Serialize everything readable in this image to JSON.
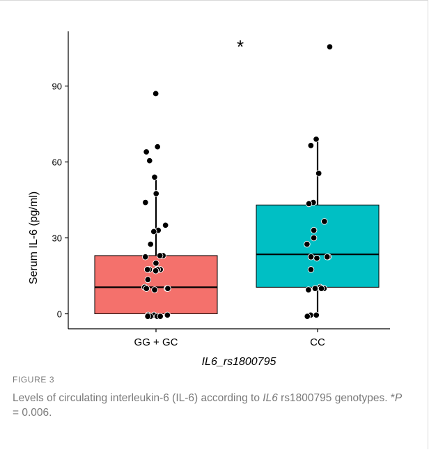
{
  "chart_data": {
    "type": "boxplot",
    "categories": [
      "GG + GC",
      "CC"
    ],
    "ylabel": "Serum IL-6 (pg/ml)",
    "xlabel": "IL6_rs1800795",
    "xlabel_italic_part": "IL6",
    "xlabel_rest": "_rs1800795",
    "yticks": [
      0,
      30,
      60,
      90
    ],
    "ylim": [
      -6,
      112
    ],
    "significance_marker": "*",
    "colors": {
      "GG + GC": "#f4716c",
      "CC": "#00bfc4"
    },
    "boxes": [
      {
        "name": "GG + GC",
        "q1": 0,
        "median": 10.5,
        "q3": 23,
        "whisker_low": -0.5,
        "whisker_high": 54
      },
      {
        "name": "CC",
        "q1": 10.5,
        "median": 23.5,
        "q3": 43,
        "whisker_low": -0.5,
        "whisker_high": 69
      }
    ],
    "points": [
      {
        "group": "GG + GC",
        "values": [
          87,
          66,
          64,
          60.5,
          54,
          47.5,
          44,
          35,
          33,
          32.5,
          27.5,
          23,
          23,
          22.5,
          20,
          17.5,
          17.5,
          17.5,
          17.5,
          17,
          13.5,
          10.5,
          10,
          10,
          10,
          9.5,
          -0.5,
          -0.5,
          -0.5,
          -1,
          -1,
          -1,
          -1
        ]
      },
      {
        "group": "CC",
        "values": [
          105.5,
          69,
          66.5,
          55.5,
          44,
          43.5,
          36.5,
          33,
          30,
          27.5,
          22.5,
          22.5,
          22.5,
          22,
          17.5,
          10.5,
          10,
          10,
          10,
          9.5,
          -0.5,
          -0.5,
          -1
        ]
      }
    ]
  },
  "figure": {
    "label": "FIGURE 3",
    "caption_pre": "Levels of circulating interleukin-6 (IL-6) according to ",
    "caption_italic": "IL6",
    "caption_mid": " rs1800795 genotypes. *",
    "caption_p": "P",
    "caption_post": " = 0.006."
  }
}
